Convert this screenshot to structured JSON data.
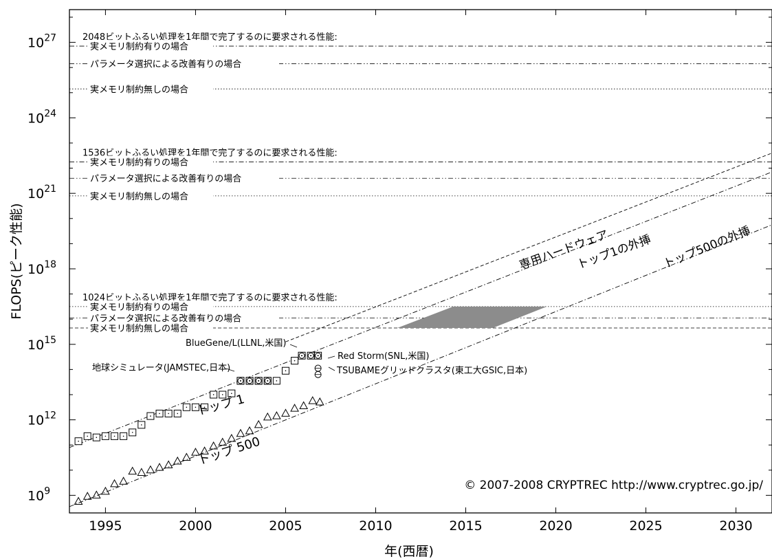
{
  "chart_data": {
    "type": "scatter",
    "xlabel": "年(西暦)",
    "ylabel": "FLOPS(ピーク性能)",
    "xlim": [
      1993,
      2032
    ],
    "ylim_log10": [
      8.3,
      28.3
    ],
    "y_scale": "log",
    "x_ticks": [
      1995,
      2000,
      2005,
      2010,
      2015,
      2020,
      2025,
      2030
    ],
    "y_ticks": [
      {
        "exp": 9,
        "base": "10",
        "sup": "9"
      },
      {
        "exp": 12,
        "base": "10",
        "sup": "12"
      },
      {
        "exp": 15,
        "base": "10",
        "sup": "15"
      },
      {
        "exp": 18,
        "base": "10",
        "sup": "18"
      },
      {
        "exp": 21,
        "base": "10",
        "sup": "21"
      },
      {
        "exp": 24,
        "base": "10",
        "sup": "24"
      },
      {
        "exp": 27,
        "base": "10",
        "sup": "27"
      }
    ],
    "thresholds": [
      {
        "title": "2048ビットふるい処理を1年間で完了するのに要求される性能:",
        "levels": [
          {
            "label": "実メモリ制約有りの場合",
            "log10": 26.85,
            "style": "dashdot"
          },
          {
            "label": "パラメータ選択による改善有りの場合",
            "log10": 26.15,
            "style": "dashdotdot"
          },
          {
            "label": "実メモリ制約無しの場合",
            "log10": 25.15,
            "style": "dotted"
          }
        ]
      },
      {
        "title": "1536ビットふるい処理を1年間で完了するのに要求される性能:",
        "levels": [
          {
            "label": "実メモリ制約有りの場合",
            "log10": 22.25,
            "style": "dashdot"
          },
          {
            "label": "パラメータ選択による改善有りの場合",
            "log10": 21.6,
            "style": "dashdotdot"
          },
          {
            "label": "実メモリ制約無しの場合",
            "log10": 20.9,
            "style": "dotted"
          }
        ]
      },
      {
        "title": "1024ビットふるい処理を1年間で完了するのに要求される性能:",
        "levels": [
          {
            "label": "実メモリ制約有りの場合",
            "log10": 16.5,
            "style": "dotted"
          },
          {
            "label": "パラメータ選択による改善有りの場合",
            "log10": 16.05,
            "style": "dashdotdot"
          },
          {
            "label": "実メモリ制約無しの場合",
            "log10": 15.65,
            "style": "dashed"
          }
        ]
      }
    ],
    "series": [
      {
        "name": "トップ 1",
        "marker": "square",
        "x": [
          1993.5,
          1994.0,
          1994.5,
          1995.0,
          1995.5,
          1996.0,
          1996.5,
          1997.0,
          1997.5,
          1998.0,
          1998.5,
          1999.0,
          1999.5,
          2000.0,
          2000.5,
          2001.0,
          2001.5,
          2002.0,
          2002.5,
          2003.0,
          2003.5,
          2004.0,
          2004.5,
          2005.0,
          2005.5
        ],
        "log10": [
          11.15,
          11.35,
          11.3,
          11.35,
          11.35,
          11.35,
          11.5,
          11.8,
          12.15,
          12.25,
          12.25,
          12.25,
          12.5,
          12.5,
          12.5,
          13.0,
          13.0,
          13.05,
          13.55,
          13.55,
          13.55,
          13.55,
          13.55,
          13.95,
          14.35
        ]
      },
      {
        "name": "BlueGene/L",
        "marker": "circle-dot",
        "x": [
          2005.9,
          2006.4,
          2006.8
        ],
        "log10": [
          14.55,
          14.55,
          14.55
        ]
      },
      {
        "name": "地球シミュレータ",
        "marker": "circle-dot",
        "x": [
          2002.5,
          2003.0,
          2003.5,
          2004.0
        ],
        "log10": [
          13.55,
          13.55,
          13.55,
          13.55
        ]
      },
      {
        "name": "トップ 500",
        "marker": "triangle",
        "x": [
          1993.5,
          1994.0,
          1994.5,
          1995.0,
          1995.5,
          1996.0,
          1996.5,
          1997.0,
          1997.5,
          1998.0,
          1998.5,
          1999.0,
          1999.5,
          2000.0,
          2000.5,
          2001.0,
          2001.5,
          2002.0,
          2002.5,
          2003.0,
          2003.5,
          2004.0,
          2004.5,
          2005.0,
          2005.5,
          2006.0,
          2006.5,
          2006.9
        ],
        "log10": [
          8.75,
          8.95,
          9.0,
          9.15,
          9.45,
          9.55,
          9.95,
          9.9,
          10.0,
          10.1,
          10.2,
          10.35,
          10.5,
          10.7,
          10.75,
          10.95,
          11.1,
          11.25,
          11.45,
          11.55,
          11.8,
          12.1,
          12.15,
          12.25,
          12.45,
          12.55,
          12.75,
          12.7
        ]
      },
      {
        "name": "Red Storm / TSUBAME",
        "marker": "circle-bar",
        "x": [
          2006.8,
          2006.8
        ],
        "log10": [
          14.05,
          13.8
        ]
      }
    ],
    "trend_lines": [
      {
        "name": "トップ1の外挿",
        "style": "dashdot",
        "x": [
          1993,
          2032
        ],
        "log10": [
          10.9,
          21.85
        ]
      },
      {
        "name": "トップ500の外挿",
        "style": "dashdot",
        "x": [
          1993,
          2032
        ],
        "log10": [
          8.55,
          19.75
        ]
      },
      {
        "name": "専用ハードウェア",
        "style": "dashed",
        "x": [
          2005,
          2032
        ],
        "log10": [
          15.1,
          22.6
        ]
      }
    ],
    "shaded_region": {
      "color": "#8c8c8c",
      "bottom_log10": 15.65,
      "top_log10": 16.5,
      "x_bottom": [
        2011.2,
        2016.5
      ],
      "x_top": [
        2014.3,
        2019.5
      ]
    },
    "annotations": {
      "bluegene": "BlueGene/L(LLNL,米国)",
      "earth_sim": "地球シミュレータ(JAMSTEC,日本)",
      "red_storm": "Red Storm(SNL,米国)",
      "tsubame": "TSUBAMEグリッドクラスタ(東工大GSIC,日本)",
      "top1": "トップ 1",
      "top500": "トップ 500",
      "dedicated": "専用ハードウェア",
      "top1_extrap": "トップ1の外挿",
      "top500_extrap": "トップ500の外挿",
      "copyright": "© 2007-2008 CRYPTREC http://www.cryptrec.go.jp/"
    }
  }
}
